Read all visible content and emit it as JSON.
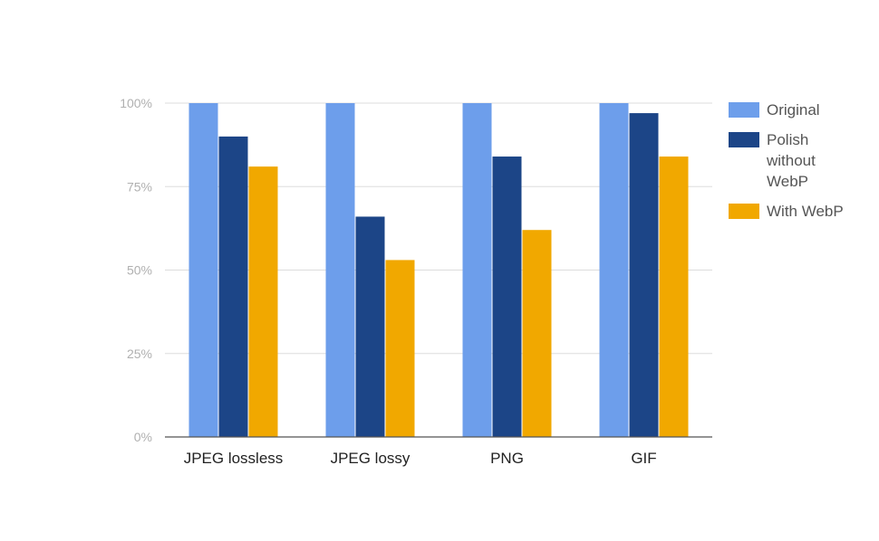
{
  "chart_data": {
    "type": "bar",
    "categories": [
      "JPEG lossless",
      "JPEG lossy",
      "PNG",
      "GIF"
    ],
    "series": [
      {
        "name": "Original",
        "color": "#6d9eeb",
        "values": [
          100,
          100,
          100,
          100
        ]
      },
      {
        "name": "Polish without WebP",
        "legend_lines": [
          "Polish",
          "without",
          "WebP"
        ],
        "color": "#1c4587",
        "values": [
          90,
          66,
          84,
          97
        ]
      },
      {
        "name": "With WebP",
        "color": "#f1a800",
        "values": [
          81,
          53,
          62,
          84
        ]
      }
    ],
    "y_ticks": [
      {
        "value": 0,
        "label": "0%"
      },
      {
        "value": 25,
        "label": "25%"
      },
      {
        "value": 50,
        "label": "50%"
      },
      {
        "value": 75,
        "label": "75%"
      },
      {
        "value": 100,
        "label": "100%"
      }
    ],
    "ylim": [
      0,
      100
    ],
    "title": "",
    "xlabel": "",
    "ylabel": "",
    "grid": true,
    "legend_position": "right"
  }
}
